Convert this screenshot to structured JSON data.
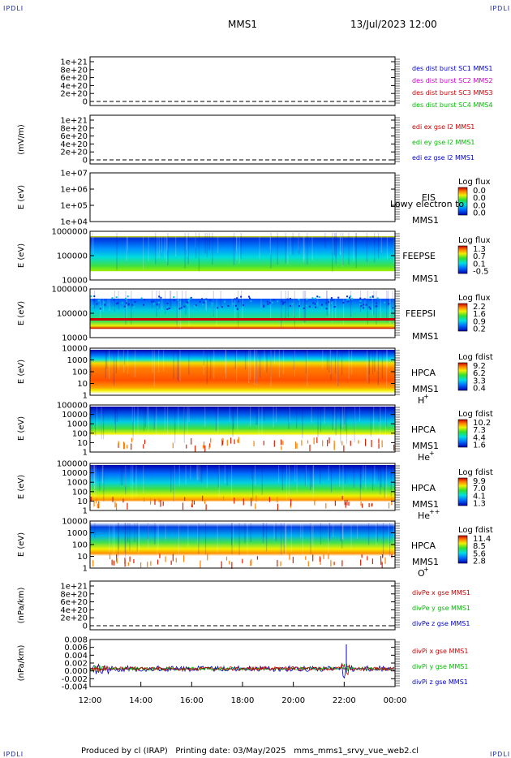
{
  "header": {
    "corner_tl": "IPDLI",
    "corner_tr": "IPDLI",
    "corner_bl": "IPDLI",
    "corner_br": "IPDLI",
    "title": "MMS1",
    "datetime": "13/Jul/2023 12:00"
  },
  "footer": "Produced by cl (IRAP)   Printing date: 03/May/2025   mms_mms1_srvy_vue_web2.cl",
  "colors": {
    "blue": "#0000cc",
    "magenta": "#cc00cc",
    "red": "#cc0000",
    "green": "#00bb00"
  },
  "chart_data": {
    "type": "heatmap",
    "x_ticks": [
      "12:00",
      "14:00",
      "16:00",
      "18:00",
      "20:00",
      "22:00",
      "00:00"
    ],
    "panels": [
      {
        "id": "p1",
        "type": "line",
        "ylabel": "",
        "yticks": [
          "1e+21",
          "8e+20",
          "6e+20",
          "4e+20",
          "2e+20",
          "0"
        ],
        "legend": [
          {
            "text": "des dist burst SC1 MMS1",
            "color": "#0000cc"
          },
          {
            "text": "des dist burst SC2 MMS2",
            "color": "#cc00cc"
          },
          {
            "text": "des dist burst SC3 MMS3",
            "color": "#cc0000"
          },
          {
            "text": "des dist burst SC4 MMS4",
            "color": "#00bb00"
          }
        ]
      },
      {
        "id": "p2",
        "type": "line",
        "ylabel": "(mV/m)",
        "yticks": [
          "1e+21",
          "8e+20",
          "6e+20",
          "4e+20",
          "2e+20",
          "0"
        ],
        "legend": [
          {
            "text": "edi ex gse l2 MMS1",
            "color": "#cc0000"
          },
          {
            "text": "edi ey gse l2 MMS1",
            "color": "#00bb00"
          },
          {
            "text": "edi ez gse l2 MMS1",
            "color": "#0000cc"
          }
        ]
      },
      {
        "id": "p3",
        "type": "spectrogram",
        "ylabel": "E (eV)",
        "yticks": [
          "1e+07",
          "1e+06",
          "1e+05",
          "1e+04"
        ],
        "labels": [
          "EIS",
          "MMS1"
        ],
        "overlay": "Lowy electron to",
        "cbar_title": "Log flux",
        "cbar_ticks": [
          "0.0",
          "0.0",
          "0.0",
          "0.0"
        ]
      },
      {
        "id": "p4",
        "type": "spectrogram",
        "ylabel": "E (eV)",
        "yticks": [
          "1000000",
          "100000",
          "10000"
        ],
        "labels": [
          "FEEPSE",
          "MMS1"
        ],
        "cbar_title": "Log flux",
        "cbar_ticks": [
          "1.3",
          "0.7",
          "0.1",
          "-0.5"
        ]
      },
      {
        "id": "p5",
        "type": "spectrogram",
        "ylabel": "E (eV)",
        "yticks": [
          "1000000",
          "100000",
          "10000"
        ],
        "labels": [
          "FEEPSI",
          "MMS1"
        ],
        "cbar_title": "Log flux",
        "cbar_ticks": [
          "2.2",
          "1.6",
          "0.9",
          "0.2"
        ]
      },
      {
        "id": "p6",
        "type": "spectrogram",
        "ylabel": "E (eV)",
        "yticks": [
          "10000",
          "1000",
          "100",
          "10",
          "1"
        ],
        "labels": [
          "HPCA",
          "MMS1",
          "H",
          "+"
        ],
        "cbar_title": "Log fdist",
        "cbar_ticks": [
          "9.2",
          "6.2",
          "3.3",
          "0.4"
        ]
      },
      {
        "id": "p7",
        "type": "spectrogram",
        "ylabel": "E (eV)",
        "yticks": [
          "100000",
          "10000",
          "1000",
          "100",
          "10",
          "1"
        ],
        "labels": [
          "HPCA",
          "MMS1",
          "He",
          "+"
        ],
        "cbar_title": "Log fdist",
        "cbar_ticks": [
          "10.2",
          "7.3",
          "4.4",
          "1.6"
        ]
      },
      {
        "id": "p8",
        "type": "spectrogram",
        "ylabel": "E (eV)",
        "yticks": [
          "100000",
          "10000",
          "1000",
          "100",
          "10",
          "1"
        ],
        "labels": [
          "HPCA",
          "MMS1",
          "He",
          "++"
        ],
        "cbar_title": "Log fdist",
        "cbar_ticks": [
          "9.9",
          "7.0",
          "4.1",
          "1.3"
        ]
      },
      {
        "id": "p9",
        "type": "spectrogram",
        "ylabel": "E (eV)",
        "yticks": [
          "10000",
          "1000",
          "100",
          "10",
          "1"
        ],
        "labels": [
          "HPCA",
          "MMS1",
          "O",
          "+"
        ],
        "cbar_title": "Log fdist",
        "cbar_ticks": [
          "11.4",
          "8.5",
          "5.6",
          "2.8"
        ]
      },
      {
        "id": "p10",
        "type": "line",
        "ylabel": "(nPa/km)",
        "yticks": [
          "1e+21",
          "8e+20",
          "6e+20",
          "4e+20",
          "2e+20",
          "0"
        ],
        "legend": [
          {
            "text": "divPe x gse MMS1",
            "color": "#cc0000"
          },
          {
            "text": "divPe y gse MMS1",
            "color": "#00bb00"
          },
          {
            "text": "divPe z gse MMS1",
            "color": "#0000cc"
          }
        ]
      },
      {
        "id": "p11",
        "type": "line",
        "ylabel": "(nPa/km)",
        "yticks": [
          "0.008",
          "0.006",
          "0.004",
          "0.002",
          "0.000",
          "-0.002",
          "-0.004"
        ],
        "ylim": [
          -0.005,
          0.008
        ],
        "legend": [
          {
            "text": "divPi x gse MMS1",
            "color": "#cc0000"
          },
          {
            "text": "divPi y gse MMS1",
            "color": "#00bb00"
          },
          {
            "text": "divPi z gse MMS1",
            "color": "#0000cc"
          }
        ]
      }
    ]
  }
}
